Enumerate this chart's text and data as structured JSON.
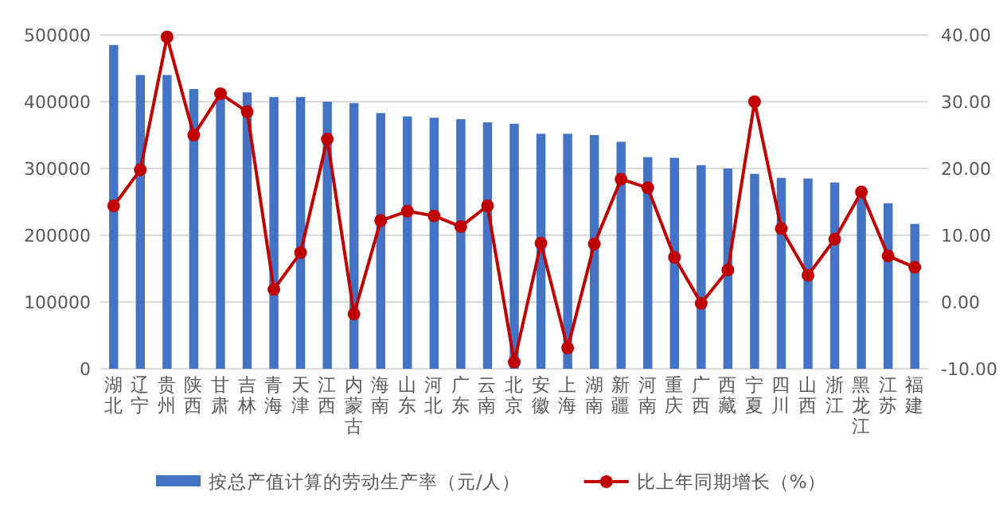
{
  "chart_data": {
    "type": "bar",
    "categories": [
      "湖北",
      "辽宁",
      "贵州",
      "陕西",
      "甘肃",
      "吉林",
      "青海",
      "天津",
      "江西",
      "内蒙古",
      "海南",
      "山东",
      "河北",
      "广东",
      "云南",
      "北京",
      "安徽",
      "上海",
      "湖南",
      "新疆",
      "河南",
      "重庆",
      "广西",
      "西藏",
      "宁夏",
      "四川",
      "山西",
      "浙江",
      "黑龙江",
      "江苏",
      "福建"
    ],
    "series": [
      {
        "name": "按总产值计算的劳动生产率（元/人）",
        "color": "#4472c4",
        "values": [
          485000,
          440000,
          440000,
          419000,
          405000,
          414000,
          407000,
          407000,
          400000,
          398000,
          383000,
          378000,
          376000,
          374000,
          369000,
          367000,
          352000,
          352000,
          350000,
          340000,
          317000,
          316000,
          305000,
          300000,
          292000,
          286000,
          285000,
          279000,
          262000,
          248000,
          217000
        ]
      },
      {
        "name": "比上年同期增长（%）",
        "type": "line",
        "axis": "y2",
        "color": "#c00000",
        "marker": "circle",
        "values": [
          14.4,
          19.8,
          39.7,
          25.0,
          31.2,
          28.5,
          1.9,
          7.4,
          24.4,
          -1.8,
          12.2,
          13.6,
          12.9,
          11.3,
          14.4,
          -9.0,
          8.8,
          -6.9,
          8.7,
          18.4,
          17.1,
          6.7,
          -0.2,
          4.8,
          30.0,
          11.0,
          4.0,
          9.4,
          16.5,
          6.9,
          5.2
        ]
      }
    ],
    "ylim": [
      0,
      500000
    ],
    "yticks": [
      0,
      100000,
      200000,
      300000,
      400000,
      500000
    ],
    "y2lim": [
      -10,
      40
    ],
    "y2ticks": [
      {
        "value": -10,
        "label": "-10.00"
      },
      {
        "value": 0,
        "label": "0.00"
      },
      {
        "value": 10,
        "label": "10.00"
      },
      {
        "value": 20,
        "label": "20.00"
      },
      {
        "value": 30,
        "label": "30.00"
      },
      {
        "value": 40,
        "label": "40.00"
      }
    ],
    "grid": "y",
    "legend": "bottom"
  }
}
